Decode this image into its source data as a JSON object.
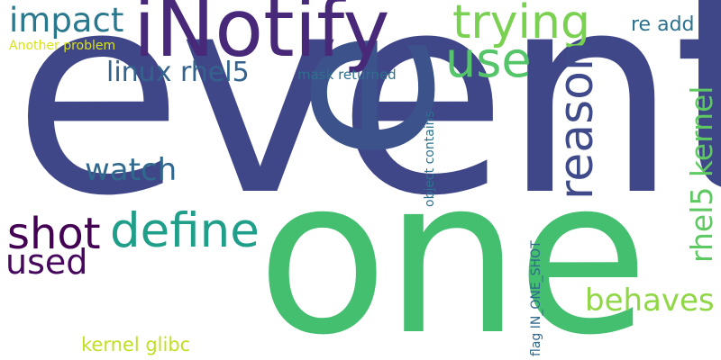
{
  "words": [
    {
      "text": "event",
      "color": "#404788"
    },
    {
      "text": "one",
      "color": "#44bf70"
    },
    {
      "text": "e",
      "color": "#3b528b"
    },
    {
      "text": "iNotify",
      "color": "#482878"
    },
    {
      "text": "trying",
      "color": "#7ad151"
    },
    {
      "text": "use",
      "color": "#54c568"
    },
    {
      "text": "impact",
      "color": "#2a788e"
    },
    {
      "text": "reason",
      "color": "#3e4a89"
    },
    {
      "text": "re add",
      "color": "#2c728e"
    },
    {
      "text": "Another problem",
      "color": "#d8e219"
    },
    {
      "text": "linux rhel5",
      "color": "#33638d"
    },
    {
      "text": "mask returned",
      "color": "#2d708e"
    },
    {
      "text": "watch",
      "color": "#31688e"
    },
    {
      "text": "object contains",
      "color": "#2c728e"
    },
    {
      "text": "rhel5 kernel",
      "color": "#5ec962"
    },
    {
      "text": "shot",
      "color": "#440154"
    },
    {
      "text": "define",
      "color": "#1f9e89"
    },
    {
      "text": "used",
      "color": "#46085c"
    },
    {
      "text": "behaves",
      "color": "#8fd744"
    },
    {
      "text": "kernel glibc",
      "color": "#c2df23"
    },
    {
      "text": "flag IN_ONE_SHOT",
      "color": "#31688e"
    }
  ]
}
